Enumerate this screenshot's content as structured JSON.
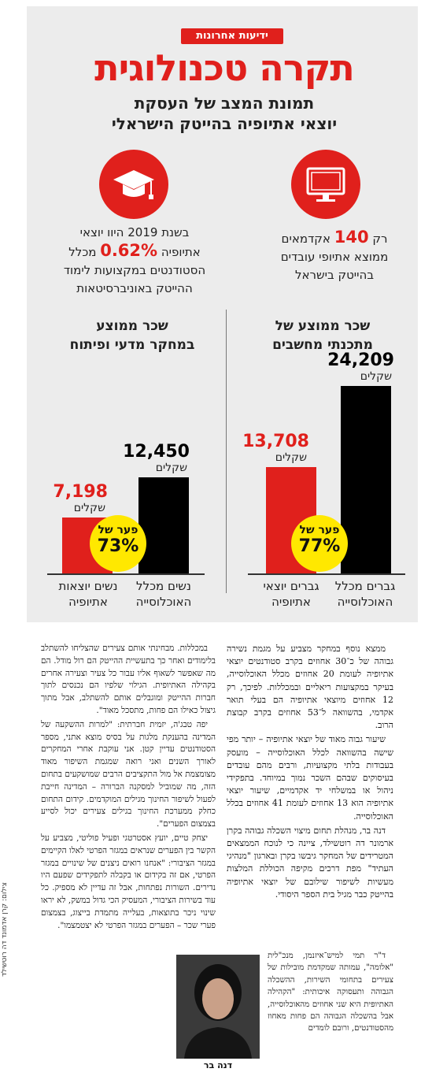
{
  "brand": "ידיעות אחרונות",
  "title": "תקרה טכנולוגית",
  "subtitle": [
    "תמונת המצב של העסקת",
    "יוצאי אתיופיה בהייטק הישראלי"
  ],
  "facts": {
    "right": {
      "icon": "computer-monitor-icon",
      "pre": "רק",
      "big": "140",
      "post": "אקדמאים",
      "lines": [
        "ממוצא אתיופי עובדים",
        "בהייטק בישראל"
      ]
    },
    "left": {
      "icon": "graduation-cap-icon",
      "line1": "בשנת 2019 היוו יוצאי",
      "pre": "אתיופיה",
      "big": "0.62%",
      "post": "מכלל",
      "lines": [
        "הסטודנטים במקצועות לימוד",
        "ההייטק באוניברסיטאות"
      ]
    }
  },
  "panels": {
    "right": {
      "title": [
        "שכר ממוצע של",
        "מתכנתי מחשבים"
      ],
      "black_value": "24,209",
      "black_unit": "שקלים",
      "red_value": "13,708",
      "red_unit": "שקלים",
      "gap_label": "פער של",
      "gap_value": "77%",
      "cat_black": [
        "גברים מכלל",
        "האוכלוסייה"
      ],
      "cat_red": [
        "גברים יוצאי",
        "אתיופיה"
      ]
    },
    "left": {
      "title": [
        "שכר ממוצע",
        "במחקר מדעי ופיתוח"
      ],
      "black_value": "12,450",
      "black_unit": "שקלים",
      "red_value": "7,198",
      "red_unit": "שקלים",
      "gap_label": "פער של",
      "gap_value": "73%",
      "cat_black": [
        "נשים מכלל",
        "האוכלוסייה"
      ],
      "cat_red": [
        "נשים יוצאות",
        "אתיופיה"
      ]
    }
  },
  "chart_data": [
    {
      "type": "bar",
      "title": "שכר ממוצע של מתכנתי מחשבים",
      "categories": [
        "גברים מכלל האוכלוסייה",
        "גברים יוצאי אתיופיה"
      ],
      "values": [
        24209,
        13708
      ]
    },
    {
      "type": "bar",
      "title": "שכר ממוצע במחקר מדעי ופיתוח",
      "categories": [
        "נשים מכלל האוכלוסייה",
        "נשים יוצאות אתיופיה"
      ],
      "values": [
        12450,
        7198
      ]
    }
  ],
  "colors": {
    "accent": "#e0201c",
    "highlight": "#ffe800",
    "background": "#ececec"
  },
  "article": {
    "col1": [
      "ממצא נוסף במחקר מצביע על מגמת נשירה גבוהה של כ־30 אחוזים בקרב סטודנטים יוצאי אתיופיה לעומת 20 אחוזים מכלל האוכלוסייה, בעיקר במקצועות ריאליים ובמכללות. לפיכך, רק 12 אחוזים מיוצאי אתיופיה הם בעלי תואר אקדמי, בהשוואה ל־53 אחוזים בקרב קבוצת הרוב.",
      "שיעור גבוה מאוד של יוצאי אתיופיה – יותר מפי שישה בהשוואה לכלל האוכלוסייה – מועסק בעבודות בלתי מקצועיות, ורבים מהם עובדים בעיסוקים שבהם השכר נמוך במיוחד. בתפקידי ניהול או במשלחי יד אקדמיים, שיעור יוצאי אתיופיה הוא 13 אחוזים לעומת 41 אחוזים בכלל האוכלוסייה.",
      "דנה בר, מנהלת תחום מיצוי השכלה גבוהה בקרן ארמונר דה רוטשילד, ציינה כי לנוכח הממצאים המטרידים של המחקר גיבשו בקרן ובארגון \"מנהיגי העתיד\" מפת דרכים מקיפה הכוללת המלצות מעשיות לשיפור שילובם של יוצאי אתיופיה בהייטק כבר מגיל בית הספר היסודי."
    ],
    "col1_short": "ד\"ר תמי למיש־איזנמן, מנכ\"לית \"אלומה\", עמותה שמקדמת מובילות של צעירים בתחומי השירות, ההשכלה הגבוהה ותעסוקה איכותית: \"הקהילה האתיופית היא שני אחוזים מהאוכלוסייה, אבל בהשכלה הגבוהה הם פחות מאחוז מהסטודנטים, ורובם לומדים",
    "col2": [
      "במכללות. מבחינתי אותם צעירים שהצליחו להשתלב בלימודים ואחר כך בתעשיית ההייטק הם רול מודל. הם מה שאפשר לשאוף אליו עבור כל צעיר וצעירה אחרים בקהילה האתיופית. הגילוי שלפיו הם נכנסים לתוך חברות ההייטק ומוגבלים אותם להשתלב, אבל מתוך גיצול כאילו הם פחות, מתסכל מאוד\".",
      "יפה טבג'ה, יזמית חברתית: \"למרות ההשקעה של המדינה בהענקת מלגות על בסיס מוצא אתני, מספר הסטודנטים עדיין קטן. אני עוקבת אחרי המחקרים לאורך השנים ואני רואה שמגמת השיפור מאוד מצומצמת אל מול התקציבים הרבים שמושקעים בתחום הזה, מה שמוביל למסקנה הברורה – המדינה חייבת לפעול לשיפור החינוך מגילים המוקדמים. קידום התחום כחלק ממערכת החינוך בגילים צעירים יכול לסייע בצמצום הפערים\".",
      "יצחק טיים, יועץ אסטרטגי ופעיל פוליטי, מצביע על הקשר בין הפערים שנראים במגזר הפרטי לאלו הקיימים במגזר הציבורי: \"אנחנו רואים ניצנים של שינויים במגזר הפרטי, אם זה בקידום או בקבלה לתפקידים שפעם היו נדירים. השורות נפתחות, אבל זה עדיין לא מספיק. כל עוד בשירות הציבורי, המעסיק הכי גדול במשק, לא יראו שינוי ניכר בתוצאות, בעלייה מתמדת בייצוג, בצמצום פערי שכר – הפערים במגזר הפרטי לא יצטמצמו\"."
    ],
    "photo_caption": "דנה בר",
    "photo_credit": "צילום: קרן אדמונד דה רוטשילד"
  }
}
